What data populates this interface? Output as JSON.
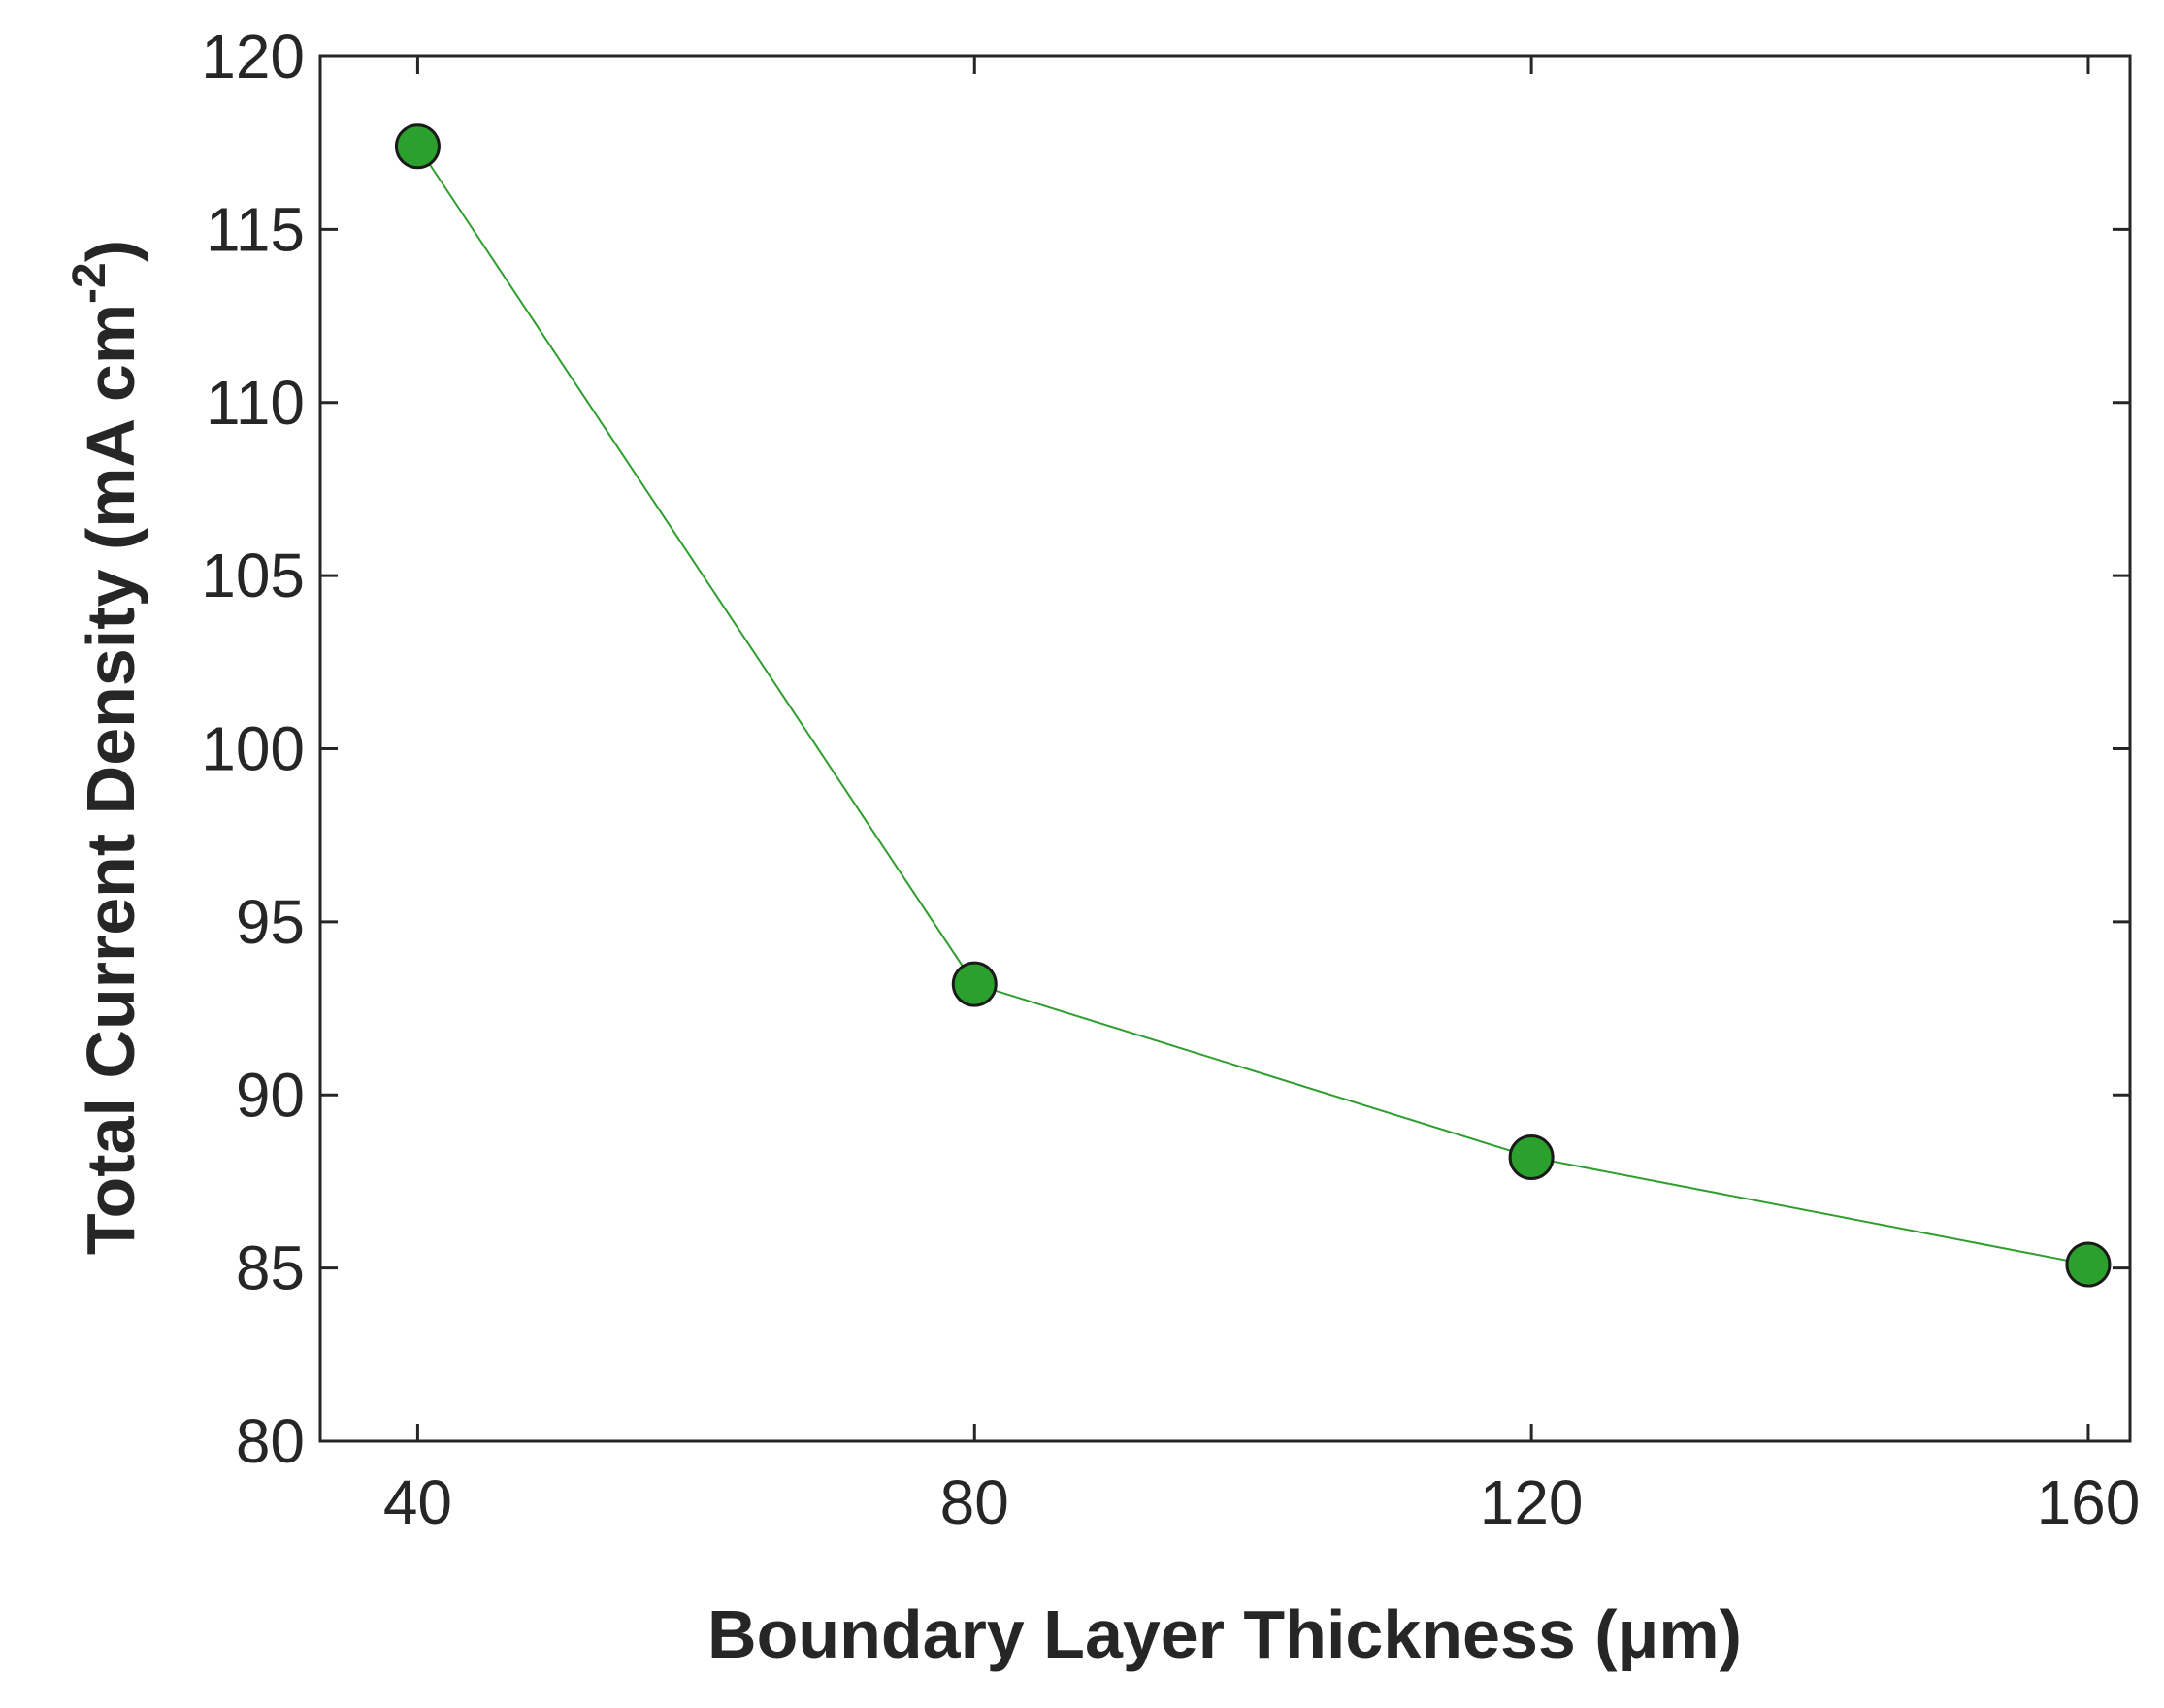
{
  "chart_data": {
    "type": "line",
    "xlabel": "Boundary Layer Thickness (μm)",
    "ylabel_main": "Total Current Density (mA cm",
    "ylabel_sup": "-2",
    "ylabel_tail": ")",
    "xlim": [
      33,
      163
    ],
    "ylim": [
      80,
      120
    ],
    "x_ticks": [
      40,
      80,
      120,
      160
    ],
    "y_ticks": [
      80,
      85,
      90,
      95,
      100,
      105,
      110,
      115,
      120
    ],
    "x_tick_labels": [
      "40",
      "80",
      "120",
      "160"
    ],
    "y_tick_labels": [
      "80",
      "85",
      "90",
      "95",
      "100",
      "105",
      "110",
      "115",
      "120"
    ],
    "grid": false,
    "series": [
      {
        "x": [
          40,
          80,
          120,
          160
        ],
        "y": [
          117.4,
          93.2,
          88.2,
          85.1
        ],
        "line_color": "#2e9e2e",
        "marker_fill": "#2ca02c",
        "marker_edge": "#1a1a1a"
      }
    ]
  }
}
